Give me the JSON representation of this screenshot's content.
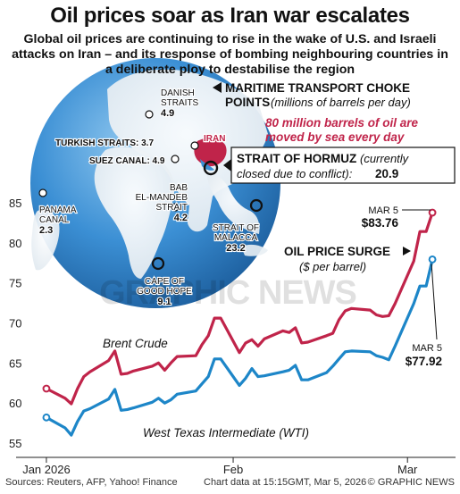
{
  "headline": "Oil prices soar as Iran war escalates",
  "subhead": "Global oil prices are continuing to rise in the wake of U.S. and Israeli attacks on Iran – and its response of bombing neighbouring countries in a deliberate ploy to destabilise the region",
  "map": {
    "legend_title_line1": "MARITIME TRANSPORT CHOKE",
    "legend_title_line2": "POINTS",
    "legend_unit": "(millions of barrels per day)",
    "sea_note_line1": "80 million barrels of oil are",
    "sea_note_line2": "moved by sea every day",
    "iran_label": "IRAN",
    "hormuz_name": "STRAIT OF HORMUZ",
    "hormuz_note_a": "(currently",
    "hormuz_note_b": "closed due to conflict):",
    "hormuz_value": "20.9",
    "chokepoints": [
      {
        "name_lines": [
          "DANISH",
          "STRAITS"
        ],
        "value": "4.9"
      },
      {
        "name_lines": [
          "TURKISH STRAITS:"
        ],
        "value": "3.7"
      },
      {
        "name_lines": [
          "SUEZ CANAL:"
        ],
        "value": "4.9"
      },
      {
        "name_lines": [
          "BAB",
          "EL-MANDEB",
          "STRAIT"
        ],
        "value": "4.2"
      },
      {
        "name_lines": [
          "PANAMA",
          "CANAL"
        ],
        "value": "2.3"
      },
      {
        "name_lines": [
          "STRAIT OF",
          "MALACCA"
        ],
        "value": "23.2"
      },
      {
        "name_lines": [
          "CAPE OF",
          "GOOD HOPE"
        ],
        "value": "9.1"
      }
    ]
  },
  "watermark": "GRAPHIC NEWS",
  "surge_label": "OIL PRICE SURGE",
  "surge_unit": "($ per barrel)",
  "chart_data": {
    "type": "line",
    "y_ticks": [
      55,
      60,
      65,
      70,
      75,
      80,
      85
    ],
    "ylim": [
      54,
      88
    ],
    "x_tick_labels": [
      "Jan 2026",
      "Feb",
      "Mar"
    ],
    "x_tick_dates": [
      "2026-01-02",
      "2026-02-01",
      "2026-03-01"
    ],
    "x_range": [
      "2025-12-31",
      "2026-03-08"
    ],
    "grid": false,
    "colors": {
      "brent": "#c0244a",
      "wti": "#1d86c8"
    },
    "series": [
      {
        "key": "brent",
        "name": "Brent Crude",
        "dates": [
          "2026-01-02",
          "2026-01-05",
          "2026-01-06",
          "2026-01-07",
          "2026-01-08",
          "2026-01-09",
          "2026-01-12",
          "2026-01-13",
          "2026-01-14",
          "2026-01-15",
          "2026-01-16",
          "2026-01-19",
          "2026-01-20",
          "2026-01-21",
          "2026-01-22",
          "2026-01-23",
          "2026-01-26",
          "2026-01-27",
          "2026-01-28",
          "2026-01-29",
          "2026-01-30",
          "2026-02-02",
          "2026-02-03",
          "2026-02-04",
          "2026-02-05",
          "2026-02-06",
          "2026-02-09",
          "2026-02-10",
          "2026-02-11",
          "2026-02-12",
          "2026-02-13",
          "2026-02-16",
          "2026-02-17",
          "2026-02-18",
          "2026-02-19",
          "2026-02-20",
          "2026-02-23",
          "2026-02-24",
          "2026-02-25",
          "2026-02-26",
          "2026-02-27",
          "2026-03-02",
          "2026-03-03",
          "2026-03-04",
          "2026-03-05"
        ],
        "values": [
          61.8,
          60.6,
          59.9,
          61.8,
          63.3,
          63.9,
          65.3,
          66.5,
          63.6,
          63.7,
          64.0,
          64.6,
          65.0,
          64.1,
          65.0,
          65.8,
          65.9,
          67.3,
          68.4,
          70.6,
          70.6,
          66.3,
          67.5,
          67.9,
          67.1,
          68.0,
          69.0,
          68.8,
          69.4,
          67.5,
          67.6,
          68.4,
          68.7,
          70.4,
          71.5,
          71.8,
          71.6,
          71.0,
          70.8,
          70.9,
          72.4,
          77.7,
          81.4,
          81.4,
          83.76
        ]
      },
      {
        "key": "wti",
        "name": "West Texas Intermediate (WTI)",
        "dates": [
          "2026-01-02",
          "2026-01-05",
          "2026-01-06",
          "2026-01-07",
          "2026-01-08",
          "2026-01-09",
          "2026-01-12",
          "2026-01-13",
          "2026-01-14",
          "2026-01-15",
          "2026-01-16",
          "2026-01-19",
          "2026-01-20",
          "2026-01-21",
          "2026-01-22",
          "2026-01-23",
          "2026-01-26",
          "2026-01-27",
          "2026-01-28",
          "2026-01-29",
          "2026-01-30",
          "2026-02-02",
          "2026-02-03",
          "2026-02-04",
          "2026-02-05",
          "2026-02-06",
          "2026-02-09",
          "2026-02-10",
          "2026-02-11",
          "2026-02-12",
          "2026-02-13",
          "2026-02-16",
          "2026-02-17",
          "2026-02-18",
          "2026-02-19",
          "2026-02-20",
          "2026-02-23",
          "2026-02-24",
          "2026-02-25",
          "2026-02-26",
          "2026-02-27",
          "2026-03-02",
          "2026-03-03",
          "2026-03-04",
          "2026-03-05"
        ],
        "values": [
          58.2,
          56.9,
          56.0,
          57.7,
          59.0,
          59.3,
          60.5,
          61.7,
          59.1,
          59.2,
          59.4,
          60.1,
          60.6,
          60.0,
          60.4,
          61.1,
          61.5,
          62.4,
          63.3,
          65.5,
          65.5,
          62.2,
          63.1,
          64.3,
          63.3,
          63.4,
          63.9,
          64.1,
          64.7,
          62.9,
          62.9,
          63.8,
          64.6,
          65.5,
          66.4,
          66.5,
          66.4,
          65.9,
          65.7,
          65.4,
          67.1,
          72.4,
          74.6,
          74.6,
          77.92
        ]
      }
    ],
    "annotations": [
      {
        "series": "brent",
        "date": "MAR 5",
        "value": "$83.76"
      },
      {
        "series": "wti",
        "date": "MAR 5",
        "value": "$77.92"
      }
    ]
  },
  "footer": {
    "sources": "Sources: Reuters, AFP, Yahoo! Finance",
    "chart_time": "Chart data at 15:15GMT, Mar 5, 2026",
    "credit": "© GRAPHIC NEWS"
  }
}
